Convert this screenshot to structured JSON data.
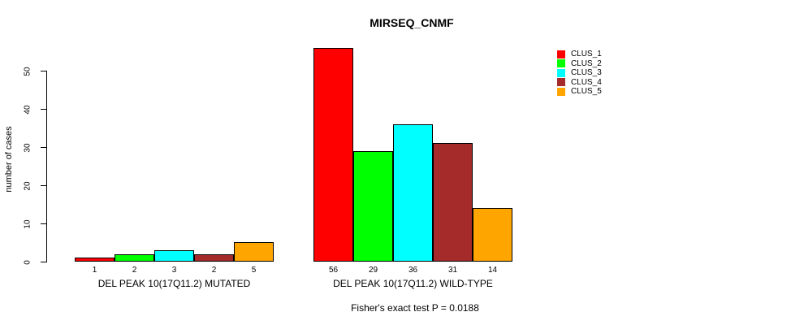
{
  "title": "MIRSEQ_CNMF",
  "footer": "Fisher's exact test P = 0.0188",
  "chart_data": {
    "type": "bar",
    "title": "MIRSEQ_CNMF",
    "xlabel": "",
    "ylabel": "number of cases",
    "ylim": [
      0,
      56
    ],
    "yticks": [
      0,
      10,
      20,
      30,
      40,
      50
    ],
    "grid": false,
    "legend_position": "top-right",
    "series": [
      {
        "name": "CLUS_1",
        "color": "#ff0000"
      },
      {
        "name": "CLUS_2",
        "color": "#00ff00"
      },
      {
        "name": "CLUS_3",
        "color": "#00ffff"
      },
      {
        "name": "CLUS_4",
        "color": "#a52a2a"
      },
      {
        "name": "CLUS_5",
        "color": "#ffa500"
      }
    ],
    "groups": [
      {
        "label": "DEL PEAK 10(17Q11.2) MUTATED",
        "values": [
          1,
          2,
          3,
          2,
          5
        ]
      },
      {
        "label": "DEL PEAK 10(17Q11.2) WILD-TYPE",
        "values": [
          56,
          29,
          36,
          31,
          14
        ]
      }
    ],
    "annotation": "Fisher's exact test P = 0.0188",
    "bar_border_color": "#000000",
    "text_color": "#000000",
    "background_color": "#ffffff"
  }
}
